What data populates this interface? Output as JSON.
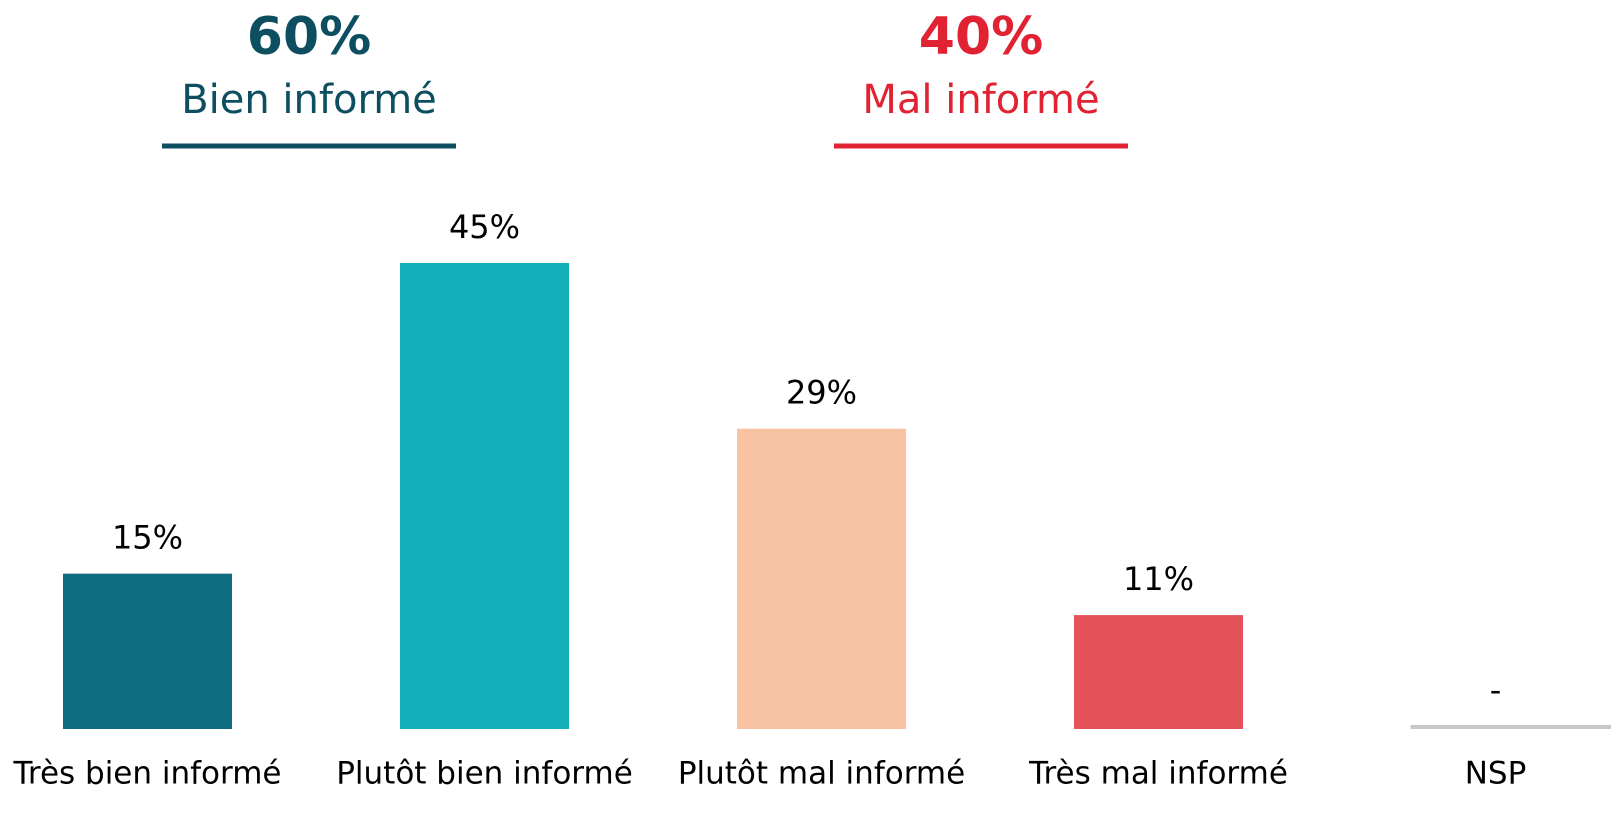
{
  "chart_data": {
    "type": "bar",
    "groups": [
      {
        "total": "60%",
        "name": "Bien informé",
        "color": "#0d4f60"
      },
      {
        "total": "40%",
        "name": "Mal informé",
        "color": "#e02232"
      }
    ],
    "categories": [
      "Très bien informé",
      "Plutôt bien informé",
      "Plutôt mal informé",
      "Très mal informé",
      "NSP"
    ],
    "values": [
      15,
      45,
      29,
      11,
      null
    ],
    "value_labels": [
      "15%",
      "45%",
      "29%",
      "11%",
      "-"
    ],
    "colors": [
      "#0f6b80",
      "#13afb8",
      "#f7c3a3",
      "#e6525a",
      "#c8c8c8"
    ],
    "ylim": [
      0,
      45
    ]
  }
}
